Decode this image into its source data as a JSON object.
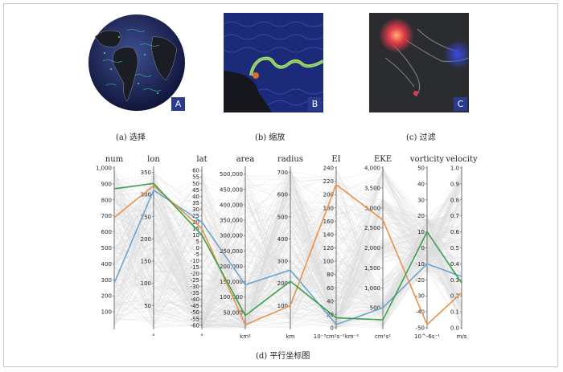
{
  "panels": [
    {
      "caption": "(a) 选择",
      "badge": "A"
    },
    {
      "caption": "(b) 缩放",
      "badge": "B"
    },
    {
      "caption": "(c) 过滤",
      "badge": "C"
    }
  ],
  "figure_caption": "(d) 平行坐标图",
  "chart_data": {
    "type": "parallel_coordinates",
    "axes": [
      {
        "name": "num",
        "unit": "",
        "ticks": [
          "100",
          "200",
          "300",
          "400",
          "500",
          "600",
          "700",
          "800",
          "900",
          "1,000"
        ],
        "range": [
          0,
          1000
        ]
      },
      {
        "name": "lon",
        "unit": "°",
        "ticks": [
          "50",
          "100",
          "150",
          "200",
          "250",
          "300",
          "350"
        ],
        "range": [
          0,
          360
        ]
      },
      {
        "name": "lat",
        "unit": "°",
        "ticks": [
          "-60",
          "-55",
          "-50",
          "-45",
          "-40",
          "-35",
          "-30",
          "-25",
          "-20",
          "-15",
          "-10",
          "-5",
          "0",
          "5",
          "10",
          "15",
          "20",
          "25",
          "30",
          "35",
          "40",
          "45",
          "50",
          "55",
          "60"
        ],
        "range": [
          -62,
          62
        ]
      },
      {
        "name": "area",
        "unit": "km²",
        "ticks": [
          "50,000",
          "100,000",
          "150,000",
          "200,000",
          "250,000",
          "300,000",
          "350,000",
          "400,000",
          "450,000",
          "500,000"
        ],
        "range": [
          0,
          520000
        ]
      },
      {
        "name": "radius",
        "unit": "km",
        "ticks": [
          "100",
          "200",
          "300",
          "400",
          "500",
          "600",
          "700"
        ],
        "range": [
          0,
          720
        ]
      },
      {
        "name": "EI",
        "unit": "10⁻³cm²s⁻²km⁻²",
        "ticks": [
          "0",
          "20",
          "40",
          "60",
          "80",
          "100",
          "120",
          "140",
          "160",
          "180",
          "200",
          "220",
          "240"
        ],
        "range": [
          0,
          240
        ]
      },
      {
        "name": "EKE",
        "unit": "cm²s²",
        "ticks": [
          "500",
          "1,000",
          "1,500",
          "2,000",
          "2,500",
          "3,000",
          "3,500",
          "4,000"
        ],
        "range": [
          0,
          4000
        ]
      },
      {
        "name": "vorticity",
        "unit": "10^-6s⁻¹",
        "ticks": [
          "-50",
          "-40",
          "-30",
          "-20",
          "-10",
          "0",
          "10",
          "20",
          "30",
          "40",
          "50"
        ],
        "range": [
          -50,
          50
        ]
      },
      {
        "name": "velocity",
        "unit": "m/s",
        "ticks": [
          "0.0",
          "0.1",
          "0.2",
          "0.3",
          "0.4",
          "0.5",
          "0.6",
          "0.7",
          "0.8",
          "0.9",
          "1.0"
        ],
        "range": [
          0,
          1
        ]
      }
    ],
    "series": [
      {
        "color": "#6fa3cc",
        "values": [
          280,
          310,
          20,
          140000,
          260,
          5,
          500,
          -10,
          0.32
        ]
      },
      {
        "color": "#e8914a",
        "values": [
          690,
          320,
          15,
          10000,
          100,
          215,
          2700,
          -48,
          0.22
        ]
      },
      {
        "color": "#3aa14a",
        "values": [
          870,
          325,
          10,
          40000,
          210,
          15,
          200,
          10,
          0.28
        ]
      }
    ]
  }
}
